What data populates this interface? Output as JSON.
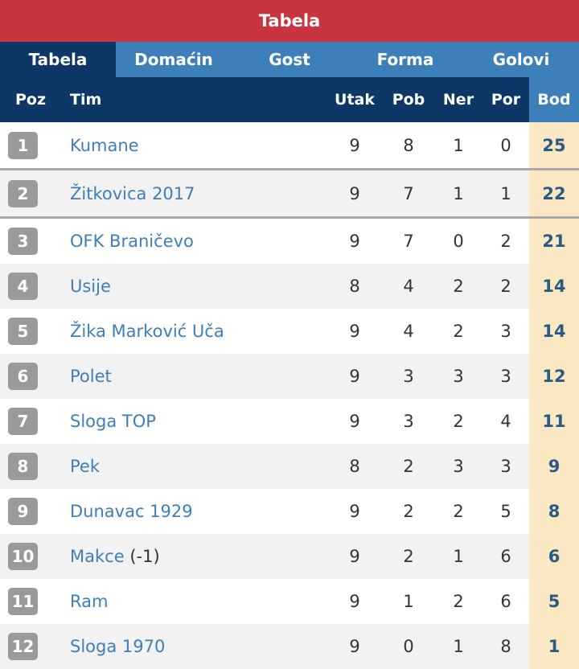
{
  "title": "Tabela",
  "tabs": [
    {
      "label": "Tabela",
      "active": true
    },
    {
      "label": "Domaćin",
      "active": false
    },
    {
      "label": "Gost",
      "active": false
    },
    {
      "label": "Forma",
      "active": false
    },
    {
      "label": "Golovi",
      "active": false
    }
  ],
  "columns": {
    "poz": "Poz",
    "tim": "Tim",
    "utak": "Utak",
    "pob": "Pob",
    "ner": "Ner",
    "por": "Por",
    "bod": "Bod"
  },
  "colors": {
    "title_bg": "#c8353f",
    "tab_bg": "#3d7fb8",
    "tab_active_bg": "#0d3766",
    "points_bg": "#f9e8c1",
    "badge_bg": "#9a9a9a"
  },
  "rows": [
    {
      "pos": "1",
      "team": "Kumane",
      "note": "",
      "utak": "9",
      "pob": "8",
      "ner": "1",
      "por": "0",
      "bod": "25"
    },
    {
      "pos": "2",
      "team": "Žitkovica 2017",
      "note": "",
      "utak": "9",
      "pob": "7",
      "ner": "1",
      "por": "1",
      "bod": "22"
    },
    {
      "pos": "3",
      "team": "OFK Braničevo",
      "note": "",
      "utak": "9",
      "pob": "7",
      "ner": "0",
      "por": "2",
      "bod": "21"
    },
    {
      "pos": "4",
      "team": "Usije",
      "note": "",
      "utak": "8",
      "pob": "4",
      "ner": "2",
      "por": "2",
      "bod": "14"
    },
    {
      "pos": "5",
      "team": "Žika Marković Uča",
      "note": "",
      "utak": "9",
      "pob": "4",
      "ner": "2",
      "por": "3",
      "bod": "14"
    },
    {
      "pos": "6",
      "team": "Polet",
      "note": "",
      "utak": "9",
      "pob": "3",
      "ner": "3",
      "por": "3",
      "bod": "12"
    },
    {
      "pos": "7",
      "team": "Sloga TOP",
      "note": "",
      "utak": "9",
      "pob": "3",
      "ner": "2",
      "por": "4",
      "bod": "11"
    },
    {
      "pos": "8",
      "team": "Pek",
      "note": "",
      "utak": "8",
      "pob": "2",
      "ner": "3",
      "por": "3",
      "bod": "9"
    },
    {
      "pos": "9",
      "team": "Dunavac 1929",
      "note": "",
      "utak": "9",
      "pob": "2",
      "ner": "2",
      "por": "5",
      "bod": "8"
    },
    {
      "pos": "10",
      "team": "Makce",
      "note": "(-1)",
      "utak": "9",
      "pob": "2",
      "ner": "1",
      "por": "6",
      "bod": "6"
    },
    {
      "pos": "11",
      "team": "Ram",
      "note": "",
      "utak": "9",
      "pob": "1",
      "ner": "2",
      "por": "6",
      "bod": "5"
    },
    {
      "pos": "12",
      "team": "Sloga 1970",
      "note": "",
      "utak": "9",
      "pob": "0",
      "ner": "1",
      "por": "8",
      "bod": "1"
    }
  ]
}
